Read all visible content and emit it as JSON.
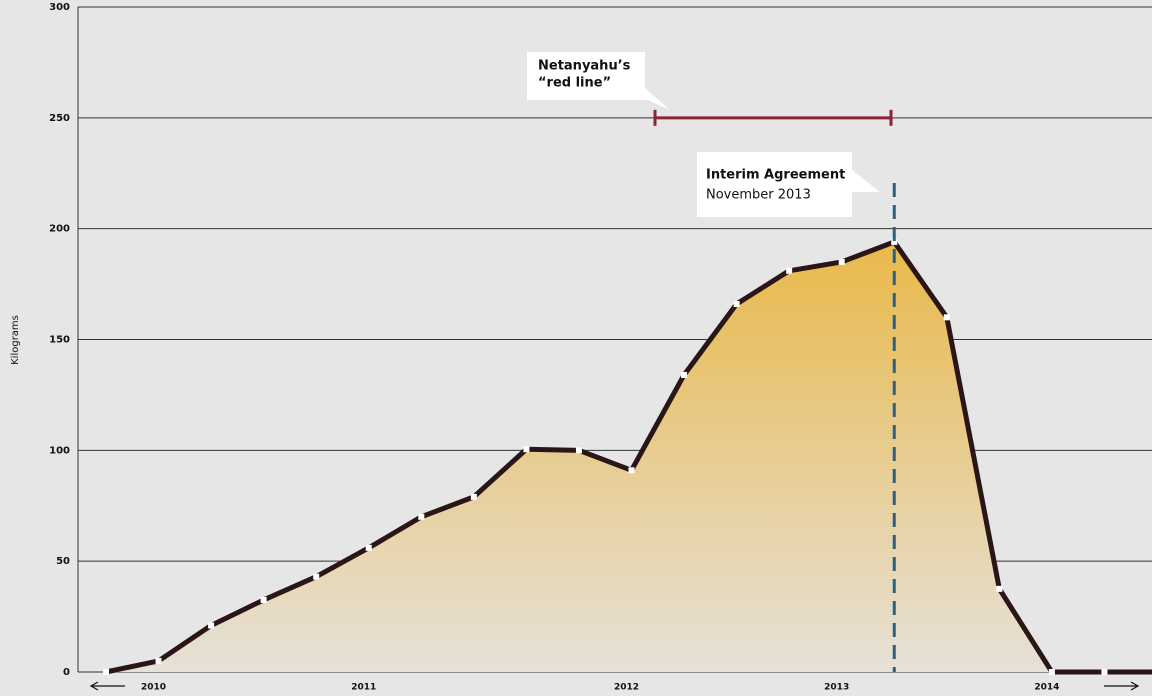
{
  "chart_data": {
    "type": "area",
    "y_label": "Kilograms",
    "categories": [
      null,
      "2010",
      null,
      null,
      null,
      "2011",
      null,
      null,
      null,
      null,
      "2012",
      null,
      null,
      null,
      "2013",
      null,
      null,
      null,
      "2014",
      null
    ],
    "values": [
      0,
      5,
      21,
      32.5,
      43,
      56,
      70,
      79,
      100.5,
      100,
      91,
      134,
      166,
      181,
      185,
      194,
      160,
      37.5,
      0,
      0
    ],
    "color": "#2a1616",
    "fill_top": "#e9b94a",
    "fill_bottom": "#e6e1d8",
    "ylim": [
      0,
      300
    ],
    "yticks": [
      0,
      50,
      100,
      150,
      200,
      250,
      300
    ],
    "grid": true,
    "red_line": {
      "label": [
        "Netanyahu’s",
        "“red line”"
      ],
      "value": 250,
      "color": "#8b2436"
    },
    "agreement": {
      "title": "Interim Agreement",
      "subtitle": "November 2013",
      "color": "#2f5f80"
    }
  }
}
